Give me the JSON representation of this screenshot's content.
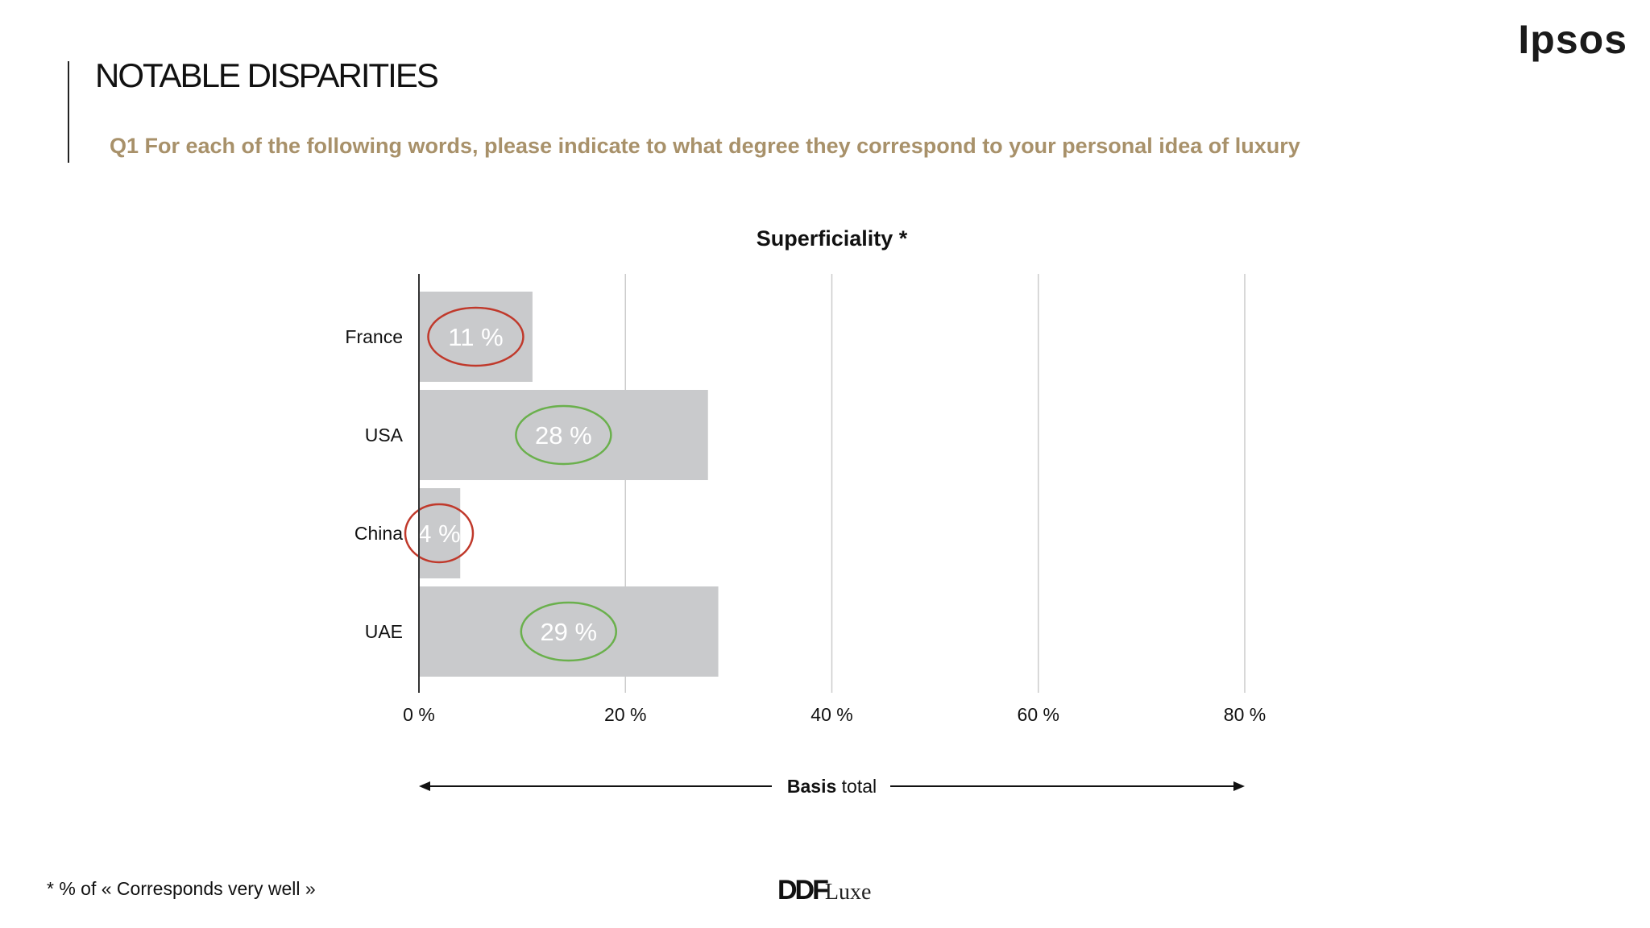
{
  "slide": {
    "title": "NOTABLE DISPARITIES",
    "question": "Q1 For each of the following words, please indicate to what degree they correspond to your personal idea of luxury",
    "logo": "Ipsos",
    "footnote": "* % of « Corresponds very well »",
    "brand_main": "DDF",
    "brand_sub": "Luxe"
  },
  "colors": {
    "bar": "#c9cacc",
    "grid": "#cccccc",
    "axis": "#333333",
    "value_label": "#ffffff",
    "highlight_low": "#c0392b",
    "highlight_high": "#6ab04c",
    "subtitle": "#a8916a"
  },
  "chart_data": {
    "type": "bar",
    "orientation": "horizontal",
    "title": "Superficiality *",
    "categories": [
      "France",
      "USA",
      "China",
      "UAE"
    ],
    "values": [
      11,
      28,
      4,
      29
    ],
    "value_labels": [
      "11 %",
      "28 %",
      "4 %",
      "29 %"
    ],
    "highlights": [
      "low",
      "high",
      "low",
      "high"
    ],
    "xlim": [
      0,
      80
    ],
    "xticks": [
      0,
      20,
      40,
      60,
      80
    ],
    "xtick_labels": [
      "0 %",
      "20 %",
      "40 %",
      "60 %",
      "80 %"
    ],
    "grid": true,
    "basis_label_bold": "Basis",
    "basis_label_rest": " total"
  }
}
